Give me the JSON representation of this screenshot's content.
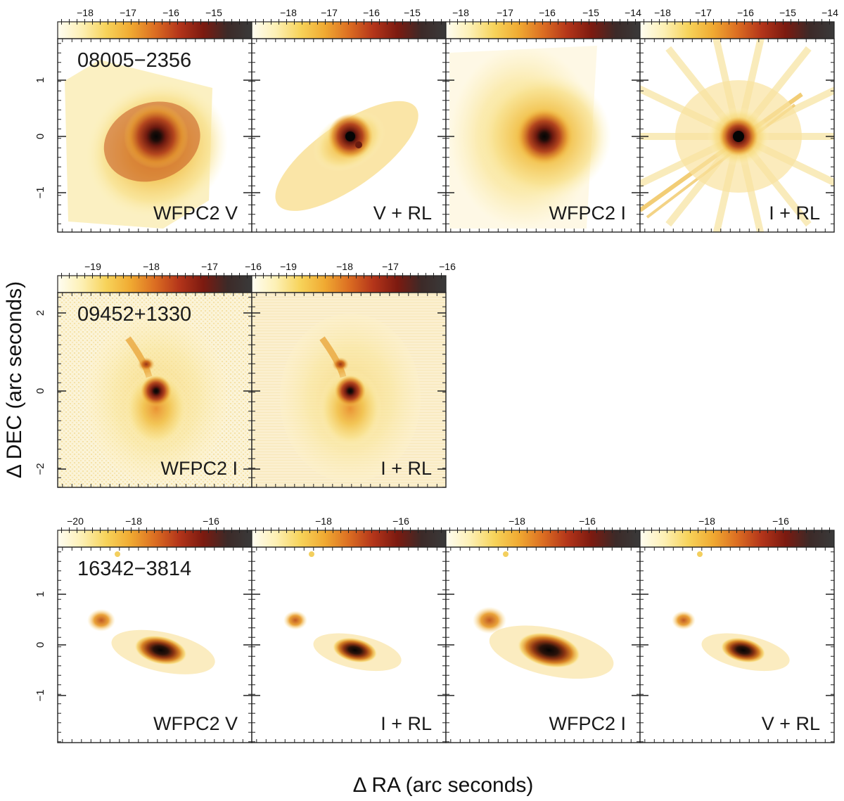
{
  "axis_titles": {
    "x": "Δ RA (arc seconds)",
    "y": "Δ DEC (arc seconds)"
  },
  "colormap": [
    "#fffdf2",
    "#fdf0b4",
    "#f7d35a",
    "#f0aa32",
    "#dc6e22",
    "#b4351a",
    "#7c1a10",
    "#3c2a28",
    "#3a3a3a"
  ],
  "rows": [
    {
      "object": "08005−2356",
      "yticks": [
        "1",
        "0",
        "−1"
      ],
      "panels": [
        {
          "label": "WFPC2 V",
          "colorbar": [
            "−18",
            "−17",
            "−16",
            "−15"
          ],
          "style": "diffuse-core"
        },
        {
          "label": "V + RL",
          "colorbar": [
            "−18",
            "−17",
            "−16",
            "−15"
          ],
          "style": "deconv-compact"
        },
        {
          "label": "WFPC2 I",
          "colorbar": [
            "−18",
            "−17",
            "−16",
            "−15",
            "−14"
          ],
          "style": "diffuse-wide"
        },
        {
          "label": "I + RL",
          "colorbar": [
            "−18",
            "−17",
            "−16",
            "−15",
            "−14"
          ],
          "style": "deconv-streaks"
        }
      ]
    },
    {
      "object": "09452+1330",
      "yticks": [
        "2",
        "0",
        "−2"
      ],
      "panels": [
        {
          "label": "WFPC2 I",
          "colorbar": [
            "−19",
            "−18",
            "−17",
            "−16"
          ],
          "style": "knot-noisy"
        },
        {
          "label": "I + RL",
          "colorbar": [
            "−19",
            "−18",
            "−17",
            "−16"
          ],
          "style": "knot-smooth"
        }
      ]
    },
    {
      "object": "16342−3814",
      "yticks": [
        "1",
        "0",
        "−1"
      ],
      "panels": [
        {
          "label": "WFPC2 V",
          "colorbar": [
            "−20",
            "−18",
            "−16"
          ],
          "style": "bipolar"
        },
        {
          "label": "I + RL",
          "colorbar": [
            "−18",
            "−16"
          ],
          "style": "bipolar-small"
        },
        {
          "label": "WFPC2 I",
          "colorbar": [
            "−18",
            "−16"
          ],
          "style": "bipolar-bright"
        },
        {
          "label": "V + RL",
          "colorbar": [
            "−18",
            "−16"
          ],
          "style": "bipolar-small"
        }
      ]
    }
  ]
}
